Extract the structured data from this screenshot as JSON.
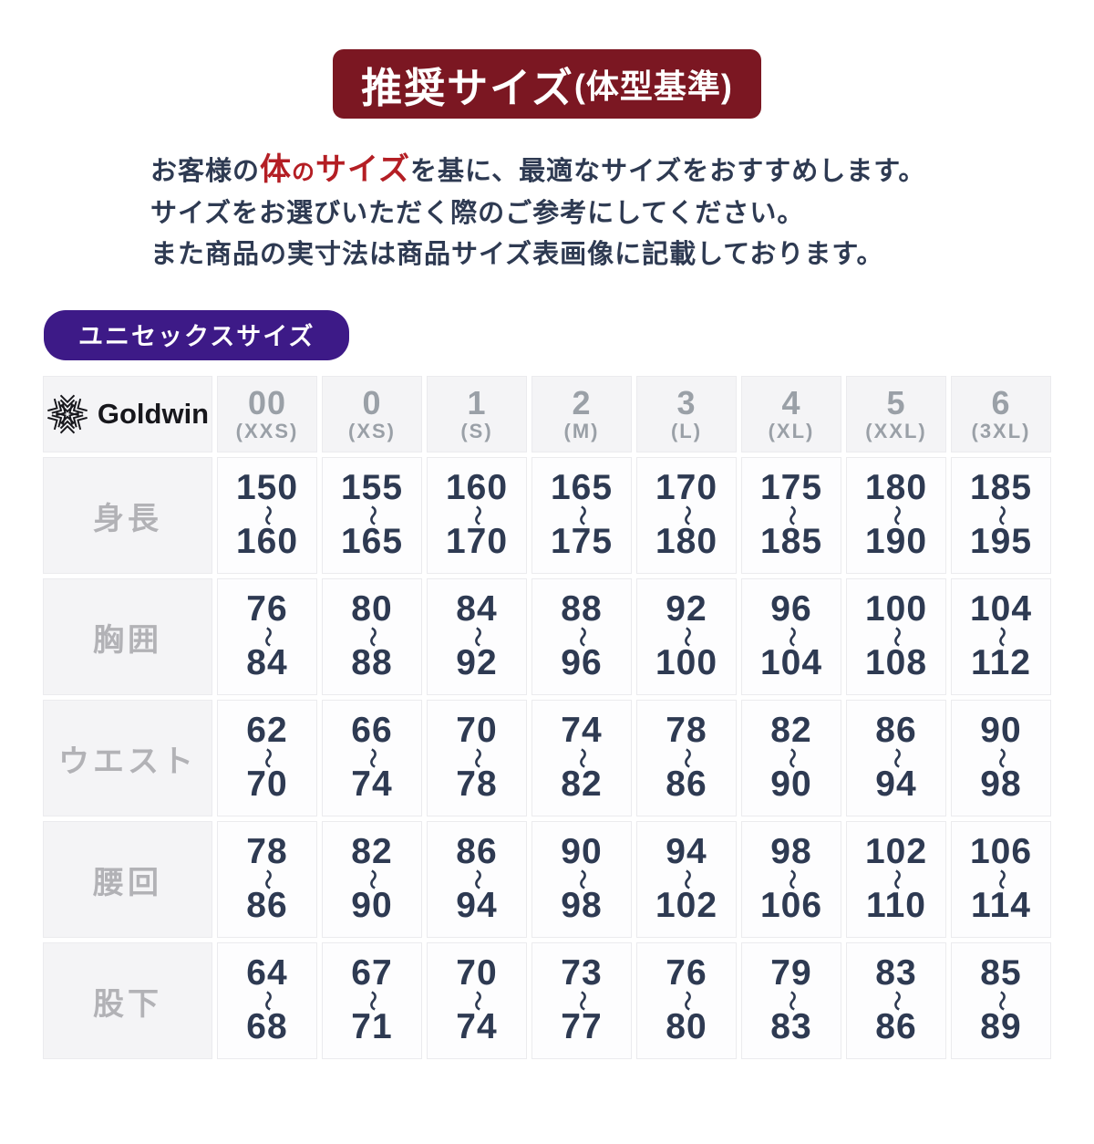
{
  "banner": {
    "title_main": "推奨サイズ",
    "title_sub": "(体型基準)",
    "bg_color": "#7b1722"
  },
  "intro": {
    "line1_prefix": "お客様の",
    "line1_highlight_1": "体",
    "line1_highlight_2": "の",
    "line1_highlight_3": "サイズ",
    "line1_suffix": "を基に、最適なサイズをおすすめします。",
    "line2": "サイズをお選びいただく際のご参考にしてください。",
    "line3": "また商品の実寸法は商品サイズ表画像に記載しております。",
    "highlight_color": "#b41e24",
    "text_color": "#2e3a52"
  },
  "section_label": {
    "text": "ユニセックスサイズ",
    "bg_color": "#3d1a87"
  },
  "table": {
    "brand": "Goldwin",
    "logo_icon": "goldwin-snowflake-icon",
    "tilde": "〜",
    "columns": [
      {
        "size": "00",
        "label": "(XXS)"
      },
      {
        "size": "0",
        "label": "(XS)"
      },
      {
        "size": "1",
        "label": "(S)"
      },
      {
        "size": "2",
        "label": "(M)"
      },
      {
        "size": "3",
        "label": "(L)"
      },
      {
        "size": "4",
        "label": "(XL)"
      },
      {
        "size": "5",
        "label": "(XXL)"
      },
      {
        "size": "6",
        "label": "(3XL)"
      }
    ],
    "rows": [
      {
        "label": "身長",
        "cells": [
          {
            "from": "150",
            "to": "160"
          },
          {
            "from": "155",
            "to": "165"
          },
          {
            "from": "160",
            "to": "170"
          },
          {
            "from": "165",
            "to": "175"
          },
          {
            "from": "170",
            "to": "180"
          },
          {
            "from": "175",
            "to": "185"
          },
          {
            "from": "180",
            "to": "190"
          },
          {
            "from": "185",
            "to": "195"
          }
        ]
      },
      {
        "label": "胸囲",
        "cells": [
          {
            "from": "76",
            "to": "84"
          },
          {
            "from": "80",
            "to": "88"
          },
          {
            "from": "84",
            "to": "92"
          },
          {
            "from": "88",
            "to": "96"
          },
          {
            "from": "92",
            "to": "100"
          },
          {
            "from": "96",
            "to": "104"
          },
          {
            "from": "100",
            "to": "108"
          },
          {
            "from": "104",
            "to": "112"
          }
        ]
      },
      {
        "label": "ウエスト",
        "cells": [
          {
            "from": "62",
            "to": "70"
          },
          {
            "from": "66",
            "to": "74"
          },
          {
            "from": "70",
            "to": "78"
          },
          {
            "from": "74",
            "to": "82"
          },
          {
            "from": "78",
            "to": "86"
          },
          {
            "from": "82",
            "to": "90"
          },
          {
            "from": "86",
            "to": "94"
          },
          {
            "from": "90",
            "to": "98"
          }
        ]
      },
      {
        "label": "腰回",
        "cells": [
          {
            "from": "78",
            "to": "86"
          },
          {
            "from": "82",
            "to": "90"
          },
          {
            "from": "86",
            "to": "94"
          },
          {
            "from": "90",
            "to": "98"
          },
          {
            "from": "94",
            "to": "102"
          },
          {
            "from": "98",
            "to": "106"
          },
          {
            "from": "102",
            "to": "110"
          },
          {
            "from": "106",
            "to": "114"
          }
        ]
      },
      {
        "label": "股下",
        "cells": [
          {
            "from": "64",
            "to": "68"
          },
          {
            "from": "67",
            "to": "71"
          },
          {
            "from": "70",
            "to": "74"
          },
          {
            "from": "73",
            "to": "77"
          },
          {
            "from": "76",
            "to": "80"
          },
          {
            "from": "79",
            "to": "83"
          },
          {
            "from": "83",
            "to": "86"
          },
          {
            "from": "85",
            "to": "89"
          }
        ]
      }
    ]
  }
}
